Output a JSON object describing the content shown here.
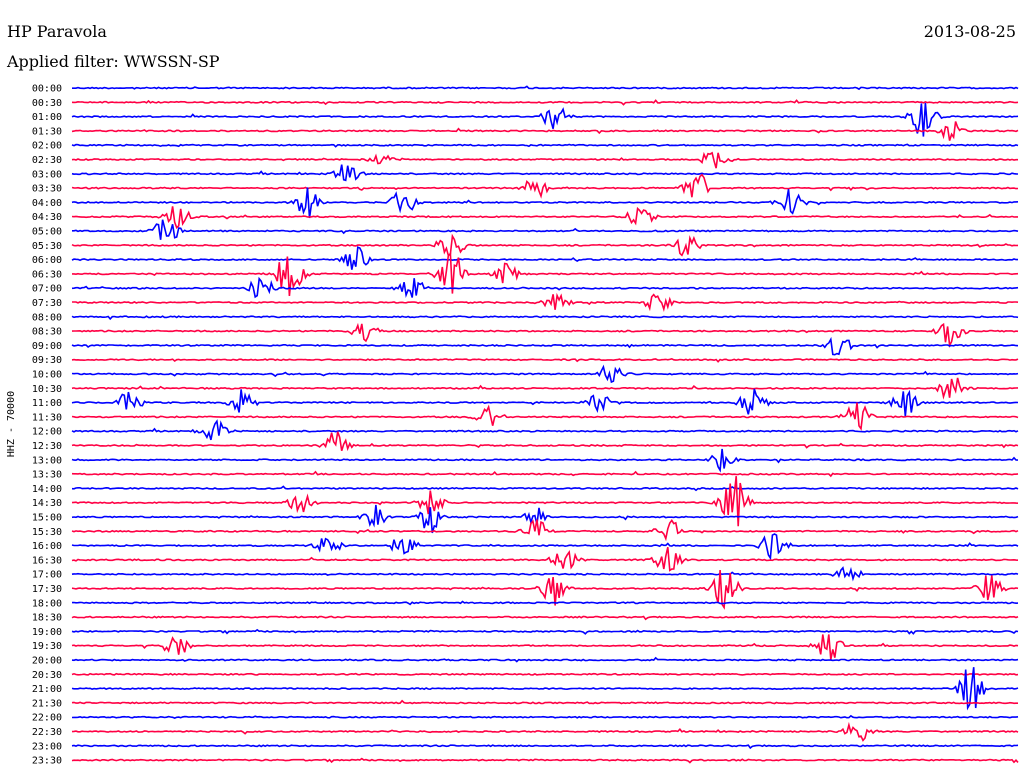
{
  "header": {
    "station": "HP Paravola",
    "date": "2013-08-25",
    "filter": "Applied filter: WWSSN-SP"
  },
  "colors": {
    "trace_a": "#0000ff",
    "trace_b": "#ff0044",
    "text": "#000000"
  },
  "chart_data": {
    "type": "helicorder",
    "ylabel": "HHZ - 70000",
    "rows": [
      "00:00",
      "00:30",
      "01:00",
      "01:30",
      "02:00",
      "02:30",
      "03:00",
      "03:30",
      "04:00",
      "04:30",
      "05:00",
      "05:30",
      "06:00",
      "06:30",
      "07:00",
      "07:30",
      "08:00",
      "08:30",
      "09:00",
      "09:30",
      "10:00",
      "10:30",
      "11:00",
      "11:30",
      "12:00",
      "12:30",
      "13:00",
      "13:30",
      "14:00",
      "14:30",
      "15:00",
      "15:30",
      "16:00",
      "16:30",
      "17:00",
      "17:30",
      "18:00",
      "18:30",
      "19:00",
      "19:30",
      "20:00",
      "20:30",
      "21:00",
      "21:30",
      "22:00",
      "22:30",
      "23:00",
      "23:30"
    ],
    "row_colors": [
      "trace_a",
      "trace_b"
    ],
    "events": [
      {
        "row": "01:00",
        "t": 0.51,
        "amp": 1.0
      },
      {
        "row": "01:00",
        "t": 0.9,
        "amp": 1.6
      },
      {
        "row": "01:30",
        "t": 0.93,
        "amp": 0.8
      },
      {
        "row": "02:30",
        "t": 0.33,
        "amp": 0.6
      },
      {
        "row": "02:30",
        "t": 0.68,
        "amp": 1.0
      },
      {
        "row": "03:00",
        "t": 0.29,
        "amp": 0.8
      },
      {
        "row": "03:30",
        "t": 0.49,
        "amp": 0.8
      },
      {
        "row": "03:30",
        "t": 0.66,
        "amp": 1.2
      },
      {
        "row": "04:00",
        "t": 0.25,
        "amp": 1.2
      },
      {
        "row": "04:00",
        "t": 0.35,
        "amp": 1.1
      },
      {
        "row": "04:00",
        "t": 0.76,
        "amp": 1.1
      },
      {
        "row": "04:30",
        "t": 0.11,
        "amp": 0.9
      },
      {
        "row": "04:30",
        "t": 0.6,
        "amp": 0.9
      },
      {
        "row": "05:00",
        "t": 0.1,
        "amp": 1.0
      },
      {
        "row": "05:30",
        "t": 0.4,
        "amp": 1.2
      },
      {
        "row": "05:30",
        "t": 0.65,
        "amp": 0.9
      },
      {
        "row": "06:00",
        "t": 0.3,
        "amp": 1.0
      },
      {
        "row": "06:30",
        "t": 0.23,
        "amp": 2.0
      },
      {
        "row": "06:30",
        "t": 0.4,
        "amp": 2.0
      },
      {
        "row": "06:30",
        "t": 0.46,
        "amp": 0.9
      },
      {
        "row": "07:00",
        "t": 0.2,
        "amp": 0.9
      },
      {
        "row": "07:00",
        "t": 0.36,
        "amp": 0.9
      },
      {
        "row": "07:30",
        "t": 0.51,
        "amp": 1.0
      },
      {
        "row": "07:30",
        "t": 0.62,
        "amp": 0.9
      },
      {
        "row": "08:30",
        "t": 0.31,
        "amp": 0.8
      },
      {
        "row": "08:30",
        "t": 0.93,
        "amp": 1.1
      },
      {
        "row": "09:00",
        "t": 0.81,
        "amp": 0.9
      },
      {
        "row": "10:00",
        "t": 0.57,
        "amp": 0.9
      },
      {
        "row": "10:30",
        "t": 0.93,
        "amp": 1.0
      },
      {
        "row": "11:00",
        "t": 0.06,
        "amp": 0.9
      },
      {
        "row": "11:00",
        "t": 0.18,
        "amp": 1.0
      },
      {
        "row": "11:00",
        "t": 0.56,
        "amp": 0.9
      },
      {
        "row": "11:00",
        "t": 0.72,
        "amp": 1.2
      },
      {
        "row": "11:00",
        "t": 0.88,
        "amp": 1.1
      },
      {
        "row": "11:30",
        "t": 0.44,
        "amp": 0.8
      },
      {
        "row": "11:30",
        "t": 0.83,
        "amp": 1.1
      },
      {
        "row": "12:00",
        "t": 0.15,
        "amp": 1.0
      },
      {
        "row": "12:30",
        "t": 0.28,
        "amp": 1.2
      },
      {
        "row": "13:00",
        "t": 0.69,
        "amp": 1.0
      },
      {
        "row": "14:30",
        "t": 0.24,
        "amp": 0.8
      },
      {
        "row": "14:30",
        "t": 0.38,
        "amp": 1.0
      },
      {
        "row": "14:30",
        "t": 0.7,
        "amp": 2.2
      },
      {
        "row": "15:00",
        "t": 0.32,
        "amp": 1.0
      },
      {
        "row": "15:00",
        "t": 0.38,
        "amp": 1.2
      },
      {
        "row": "15:00",
        "t": 0.49,
        "amp": 0.8
      },
      {
        "row": "15:30",
        "t": 0.49,
        "amp": 0.9
      },
      {
        "row": "15:30",
        "t": 0.63,
        "amp": 1.1
      },
      {
        "row": "16:00",
        "t": 0.27,
        "amp": 0.9
      },
      {
        "row": "16:00",
        "t": 0.35,
        "amp": 0.8
      },
      {
        "row": "16:00",
        "t": 0.74,
        "amp": 0.9
      },
      {
        "row": "16:30",
        "t": 0.52,
        "amp": 1.0
      },
      {
        "row": "16:30",
        "t": 0.63,
        "amp": 1.0
      },
      {
        "row": "17:00",
        "t": 0.82,
        "amp": 0.9
      },
      {
        "row": "17:30",
        "t": 0.51,
        "amp": 1.3
      },
      {
        "row": "17:30",
        "t": 0.69,
        "amp": 1.6
      },
      {
        "row": "17:30",
        "t": 0.97,
        "amp": 1.0
      },
      {
        "row": "19:30",
        "t": 0.11,
        "amp": 0.9
      },
      {
        "row": "19:30",
        "t": 0.8,
        "amp": 1.1
      },
      {
        "row": "21:00",
        "t": 0.95,
        "amp": 1.8
      },
      {
        "row": "22:30",
        "t": 0.83,
        "amp": 1.0
      }
    ]
  }
}
